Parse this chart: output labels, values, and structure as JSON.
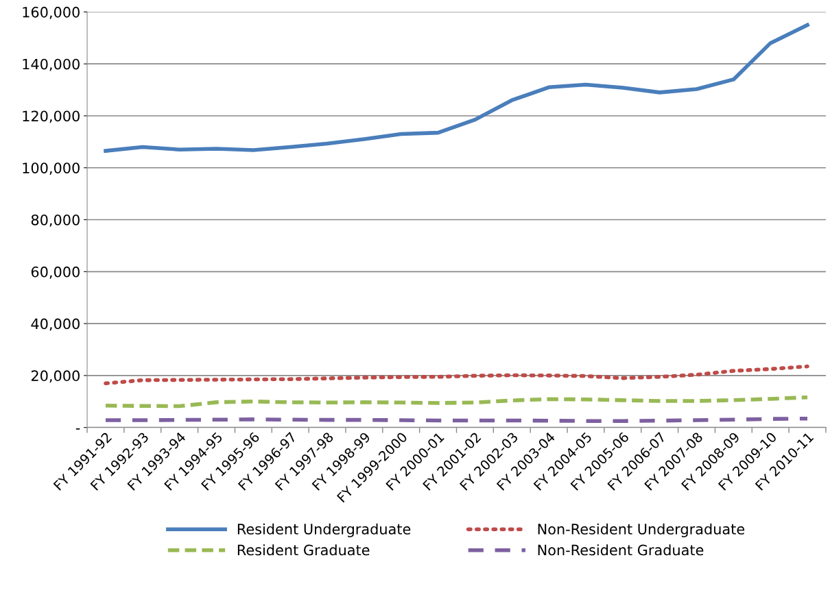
{
  "chart_data": {
    "type": "line",
    "categories": [
      "FY 1991-92",
      "FY 1992-93",
      "FY 1993-94",
      "FY 1994-95",
      "FY 1995-96",
      "FY 1996-97",
      "FY 1997-98",
      "FY 1998-99",
      "FY 1999-2000",
      "FY 2000-01",
      "FY 2001-02",
      "FY 2002-03",
      "FY 2003-04",
      "FY 2004-05",
      "FY 2005-06",
      "FY 2006-07",
      "FY 2007-08",
      "FY 2008-09",
      "FY 2009-10",
      "FY 2010-11"
    ],
    "series": [
      {
        "name": "Resident Undergraduate",
        "color": "#4a7ebb",
        "line_style": "solid",
        "values": [
          106500,
          108000,
          107000,
          107300,
          106800,
          108000,
          109300,
          111000,
          113000,
          113500,
          118500,
          126000,
          131000,
          132000,
          130800,
          129000,
          130300,
          134000,
          148000,
          155000
        ]
      },
      {
        "name": "Non-Resident Undergraduate",
        "color": "#be4b48",
        "line_style": "dotted",
        "values": [
          17000,
          18200,
          18300,
          18400,
          18500,
          18600,
          18900,
          19200,
          19400,
          19500,
          19900,
          20100,
          20000,
          19800,
          19000,
          19500,
          20300,
          21800,
          22500,
          23500
        ]
      },
      {
        "name": "Resident Graduate",
        "color": "#98b954",
        "line_style": "dashed",
        "values": [
          8400,
          8300,
          8200,
          9700,
          10000,
          9700,
          9600,
          9700,
          9600,
          9400,
          9600,
          10400,
          10900,
          10800,
          10500,
          10200,
          10200,
          10500,
          11000,
          11600
        ]
      },
      {
        "name": "Non-Resident Graduate",
        "color": "#7d60a0",
        "line_style": "longdash",
        "values": [
          2800,
          2800,
          2900,
          3000,
          3100,
          3000,
          2900,
          2900,
          2800,
          2700,
          2700,
          2700,
          2600,
          2500,
          2500,
          2600,
          2800,
          3000,
          3300,
          3400
        ]
      }
    ],
    "ylim": [
      0,
      160000
    ],
    "yticks": [
      {
        "value": 0,
        "label": "-"
      },
      {
        "value": 20000,
        "label": "20,000"
      },
      {
        "value": 40000,
        "label": "40,000"
      },
      {
        "value": 60000,
        "label": "60,000"
      },
      {
        "value": 80000,
        "label": "80,000"
      },
      {
        "value": 100000,
        "label": "100,000"
      },
      {
        "value": 120000,
        "label": "120,000"
      },
      {
        "value": 140000,
        "label": "140,000"
      },
      {
        "value": 160000,
        "label": "160,000"
      }
    ],
    "grid": "y",
    "legend": "bottom"
  }
}
